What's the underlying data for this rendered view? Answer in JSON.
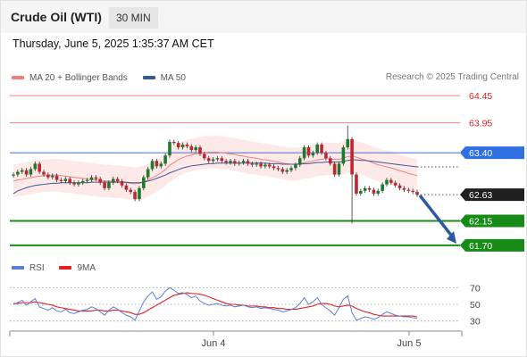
{
  "header": {
    "title": "Crude Oil (WTI)",
    "timeframe": "30 MIN"
  },
  "timestamp": "Thursday, June 5, 2025 1:35:37 AM CET",
  "legend": {
    "ma20_label": "MA 20 + Bollinger Bands",
    "ma50_label": "MA 50",
    "ma20_color": "#f08080",
    "ma50_color": "#3a5998"
  },
  "credit": "Research © 2025 Trading Central",
  "rsi_legend": {
    "rsi_label": "RSI",
    "ma_label": "9MA",
    "rsi_color": "#5b7fd6",
    "ma_color": "#e02020"
  },
  "colors": {
    "up": "#1e7a2e",
    "down": "#c0262f",
    "resistance": "#f08080",
    "pivot": "#5b7fd6",
    "support": "#1e8a1e",
    "current": "#1f1f1f",
    "arrow": "#2c5aa0"
  },
  "chart_data": [
    {
      "type": "candlestick",
      "title": "Crude Oil (WTI)",
      "x_axis": {
        "tick_labels": [
          "Jun 4",
          "Jun 5"
        ]
      },
      "ylim": [
        61.6,
        64.55
      ],
      "levels": [
        {
          "value": 64.45,
          "label": "64.45",
          "kind": "resistance"
        },
        {
          "value": 63.95,
          "label": "63.95",
          "kind": "resistance"
        },
        {
          "value": 63.4,
          "label": "63.40",
          "kind": "pivot"
        },
        {
          "value": 62.63,
          "label": "62.63",
          "kind": "current"
        },
        {
          "value": 62.15,
          "label": "62.15",
          "kind": "support"
        },
        {
          "value": 61.7,
          "label": "61.70",
          "kind": "support"
        }
      ],
      "close": [
        63.0,
        63.05,
        63.08,
        63.0,
        63.1,
        63.2,
        63.05,
        63.0,
        62.95,
        62.98,
        62.9,
        62.88,
        62.92,
        62.85,
        62.82,
        62.85,
        62.88,
        62.9,
        62.95,
        62.92,
        62.85,
        62.75,
        62.85,
        62.92,
        62.88,
        62.8,
        62.72,
        62.68,
        62.55,
        62.75,
        62.95,
        63.1,
        63.25,
        63.15,
        63.2,
        63.35,
        63.6,
        63.58,
        63.5,
        63.55,
        63.52,
        63.45,
        63.5,
        63.38,
        63.3,
        63.25,
        63.28,
        63.3,
        63.25,
        63.22,
        63.25,
        63.2,
        63.22,
        63.25,
        63.2,
        63.18,
        63.2,
        63.15,
        63.18,
        63.15,
        63.12,
        63.1,
        63.05,
        63.08,
        63.12,
        63.18,
        63.3,
        63.5,
        63.35,
        63.4,
        63.55,
        63.4,
        63.3,
        63.2,
        63.0,
        63.2,
        63.5,
        63.65,
        63.0,
        62.65,
        62.7,
        62.75,
        62.72,
        62.65,
        62.7,
        62.82,
        62.9,
        62.85,
        62.8,
        62.75,
        62.72,
        62.7,
        62.68,
        62.63
      ],
      "ma20": [
        62.88,
        62.9,
        62.91,
        62.93,
        62.94,
        62.96,
        62.97,
        62.98,
        62.98,
        62.99,
        62.99,
        62.98,
        62.97,
        62.96,
        62.95,
        62.94,
        62.93,
        62.92,
        62.91,
        62.9,
        62.89,
        62.88,
        62.88,
        62.87,
        62.87,
        62.86,
        62.85,
        62.84,
        62.83,
        62.84,
        62.86,
        62.9,
        62.94,
        62.98,
        63.03,
        63.09,
        63.17,
        63.22,
        63.27,
        63.31,
        63.34,
        63.36,
        63.38,
        63.39,
        63.4,
        63.41,
        63.41,
        63.41,
        63.4,
        63.39,
        63.38,
        63.37,
        63.35,
        63.34,
        63.32,
        63.31,
        63.3,
        63.28,
        63.27,
        63.26,
        63.24,
        63.23,
        63.21,
        63.2,
        63.19,
        63.19,
        63.2,
        63.22,
        63.23,
        63.25,
        63.27,
        63.28,
        63.29,
        63.29,
        63.28,
        63.28,
        63.3,
        63.33,
        63.34,
        63.32,
        63.29,
        63.27,
        63.24,
        63.21,
        63.18,
        63.16,
        63.14,
        63.12,
        63.1,
        63.07,
        63.05,
        63.02,
        63.0,
        62.98
      ],
      "ma50": [
        62.65,
        62.7,
        62.73,
        62.76,
        62.78,
        62.8,
        62.81,
        62.82,
        62.83,
        62.84,
        62.84,
        62.85,
        62.85,
        62.85,
        62.85,
        62.85,
        62.85,
        62.85,
        62.86,
        62.86,
        62.86,
        62.86,
        62.86,
        62.86,
        62.86,
        62.86,
        62.86,
        62.85,
        62.85,
        62.85,
        62.86,
        62.88,
        62.9,
        62.93,
        62.96,
        62.99,
        63.03,
        63.06,
        63.09,
        63.12,
        63.14,
        63.16,
        63.17,
        63.18,
        63.19,
        63.2,
        63.2,
        63.21,
        63.21,
        63.21,
        63.21,
        63.21,
        63.21,
        63.21,
        63.21,
        63.21,
        63.21,
        63.21,
        63.21,
        63.2,
        63.2,
        63.2,
        63.19,
        63.19,
        63.19,
        63.19,
        63.19,
        63.2,
        63.2,
        63.21,
        63.22,
        63.22,
        63.23,
        63.23,
        63.23,
        63.23,
        63.24,
        63.26,
        63.27,
        63.27,
        63.26,
        63.26,
        63.25,
        63.24,
        63.23,
        63.22,
        63.21,
        63.2,
        63.19,
        63.18,
        63.17,
        63.16,
        63.15,
        63.14
      ],
      "band_half_width": 0.3
    },
    {
      "type": "line",
      "title": "RSI",
      "ylim": [
        20,
        80
      ],
      "y_ticks": [
        70,
        50,
        30
      ],
      "series": [
        {
          "name": "RSI",
          "values": [
            50,
            52,
            55,
            49,
            53,
            57,
            47,
            45,
            43,
            46,
            42,
            41,
            44,
            40,
            39,
            41,
            43,
            44,
            47,
            45,
            41,
            37,
            43,
            47,
            44,
            40,
            37,
            35,
            31,
            42,
            53,
            60,
            65,
            56,
            59,
            66,
            70,
            67,
            63,
            64,
            62,
            58,
            60,
            54,
            51,
            49,
            50,
            51,
            49,
            48,
            49,
            47,
            48,
            49,
            47,
            46,
            47,
            45,
            46,
            45,
            44,
            43,
            41,
            42,
            44,
            46,
            51,
            58,
            50,
            53,
            58,
            50,
            46,
            42,
            37,
            46,
            56,
            60,
            40,
            31,
            33,
            35,
            34,
            32,
            34,
            38,
            41,
            39,
            37,
            36,
            35,
            35,
            34,
            33
          ]
        },
        {
          "name": "9MA",
          "values": [
            51,
            51,
            52,
            52,
            52,
            53,
            52,
            51,
            50,
            49,
            47,
            46,
            45,
            44,
            43,
            42,
            42,
            42,
            42,
            43,
            43,
            42,
            42,
            43,
            43,
            42,
            41,
            40,
            38,
            38,
            40,
            43,
            46,
            49,
            52,
            55,
            58,
            61,
            62,
            63,
            64,
            63,
            63,
            62,
            61,
            59,
            57,
            55,
            53,
            51,
            50,
            50,
            49,
            49,
            48,
            48,
            48,
            47,
            47,
            46,
            46,
            45,
            45,
            44,
            44,
            44,
            45,
            46,
            47,
            48,
            50,
            51,
            51,
            50,
            48,
            47,
            48,
            49,
            48,
            45,
            43,
            41,
            40,
            38,
            37,
            36,
            36,
            36,
            36,
            36,
            36,
            36,
            36,
            35
          ]
        }
      ]
    }
  ]
}
